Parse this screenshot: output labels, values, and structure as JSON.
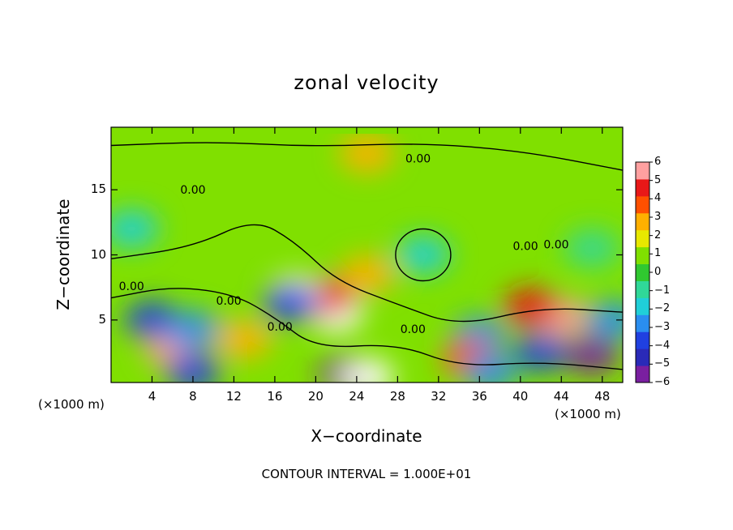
{
  "chart_data": {
    "type": "heatmap",
    "title": "zonal velocity",
    "xlabel": "X−coordinate",
    "ylabel": "Z−coordinate",
    "x_unit_left": "(×1000 m)",
    "x_unit_right": "(×1000 m)",
    "xlim": [
      0,
      50
    ],
    "ylim": [
      0.2,
      19.8
    ],
    "x_ticks": [
      4,
      8,
      12,
      16,
      20,
      24,
      28,
      32,
      36,
      40,
      44,
      48
    ],
    "x_tick_labels": [
      "4",
      "8",
      "12",
      "16",
      "20",
      "24",
      "28",
      "32",
      "36",
      "40",
      "44",
      "48"
    ],
    "y_ticks": [
      5,
      10,
      15
    ],
    "y_tick_labels": [
      "5",
      "10",
      "15"
    ],
    "colorbar": {
      "min": -6,
      "max": 6,
      "tick_values": [
        6,
        5,
        4,
        3,
        2,
        1,
        0,
        -1,
        -2,
        -3,
        -4,
        -5,
        -6
      ],
      "tick_labels": [
        "6",
        "5",
        "4",
        "3",
        "2",
        "1",
        "0",
        "−1",
        "−2",
        "−3",
        "−4",
        "−5",
        "−6"
      ],
      "colors": [
        "#7a1fa0",
        "#2a2ab8",
        "#2040e0",
        "#2a8ef0",
        "#20cfd8",
        "#30d898",
        "#30c830",
        "#80e000",
        "#e8e800",
        "#ffb000",
        "#ff5000",
        "#e81818",
        "#ffa0a0"
      ]
    },
    "contour_label": "0.00",
    "contour_label_positions": [
      [
        30,
        17.4
      ],
      [
        8,
        15.0
      ],
      [
        2,
        7.6
      ],
      [
        11.5,
        6.5
      ],
      [
        16.5,
        4.5
      ],
      [
        29.5,
        4.3
      ],
      [
        40.5,
        10.7
      ],
      [
        43.5,
        10.8
      ]
    ],
    "features": [
      {
        "x": 22,
        "z": 5.5,
        "value": 7
      },
      {
        "x": 21,
        "z": 6.8,
        "value": 5
      },
      {
        "x": 25,
        "z": 8.5,
        "value": 3
      },
      {
        "x": 6,
        "z": 2.8,
        "value": 6
      },
      {
        "x": 18,
        "z": 7.0,
        "value": 6.5
      },
      {
        "x": 17.5,
        "z": 6.3,
        "value": -4.5
      },
      {
        "x": 4,
        "z": 5.0,
        "value": -4.5
      },
      {
        "x": 8,
        "z": 4.3,
        "value": -3.5
      },
      {
        "x": 42,
        "z": 2.5,
        "value": -4.5
      },
      {
        "x": 36,
        "z": 3.8,
        "value": -3.5
      },
      {
        "x": 44,
        "z": 5.2,
        "value": 6
      },
      {
        "x": 41,
        "z": 6.0,
        "value": 4.5
      },
      {
        "x": 47,
        "z": 2.3,
        "value": -6
      },
      {
        "x": 30.5,
        "z": 10.0,
        "value": -2.5
      },
      {
        "x": 25,
        "z": 17.8,
        "value": 2.5
      },
      {
        "x": 2,
        "z": 12,
        "value": -1.8
      },
      {
        "x": 23,
        "z": 0.8,
        "value": -6
      },
      {
        "x": 25,
        "z": 0.6,
        "value": 7
      },
      {
        "x": 8,
        "z": 1.0,
        "value": -4
      },
      {
        "x": 35,
        "z": 2.0,
        "value": 4
      },
      {
        "x": 13,
        "z": 3.5,
        "value": 3
      },
      {
        "x": 37,
        "z": 1.0,
        "value": -3.5
      },
      {
        "x": 49,
        "z": 5.0,
        "value": -3
      },
      {
        "x": 47,
        "z": 10.5,
        "value": -1
      }
    ]
  },
  "footer": {
    "contour_interval": "CONTOUR INTERVAL = 1.000E+01"
  }
}
